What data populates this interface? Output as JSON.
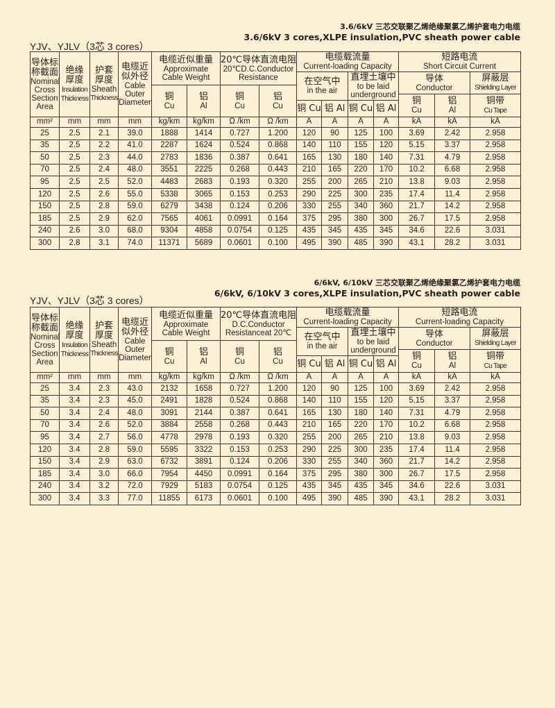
{
  "colors": {
    "background": "#fdf0d5",
    "rule": "#3a3633",
    "text": "#231f1c"
  },
  "table1": {
    "title_zh": "3.6/6kV 三芯交联聚乙烯绝缘聚氯乙烯护套电力电缆",
    "title_en": "3.6/6kV 3 cores,XLPE insulation,PVC sheath power cable",
    "label": "YJV、YJLV（3芯  3 cores）",
    "header": [
      {
        "key": "nominal-area",
        "rs": 5,
        "cs": 1,
        "row": 0,
        "lines": [
          "导体标",
          "称截面",
          "Nominal",
          "Cross",
          "Section",
          "Area"
        ]
      },
      {
        "key": "insulation-thickness",
        "rs": 5,
        "cs": 1,
        "row": 0,
        "lines": [
          "绝缘",
          "厚度",
          "Insulation",
          "Thickness"
        ]
      },
      {
        "key": "sheath-thickness",
        "rs": 5,
        "cs": 1,
        "row": 0,
        "lines": [
          "护套",
          "厚度",
          "Sheath",
          "Thickness"
        ]
      },
      {
        "key": "outer-diameter",
        "rs": 5,
        "cs": 1,
        "row": 0,
        "lines": [
          "电缆近",
          "似外径",
          "Cable",
          "Outer",
          "Diameter"
        ]
      },
      {
        "key": "cable-weight",
        "rs": 2,
        "cs": 2,
        "row": 0,
        "lines": [
          "电缆近似重量",
          "Approximate",
          "Cable Weight"
        ]
      },
      {
        "key": "dc-resistance",
        "rs": 2,
        "cs": 2,
        "row": 0,
        "lines": [
          "20℃导体直流电阻",
          "20℃D.C.Conductor",
          "Resistance"
        ]
      },
      {
        "key": "current-capacity",
        "rs": 1,
        "cs": 4,
        "row": 0,
        "lines": [
          "电缆载流量",
          "Current-loading Capacity"
        ]
      },
      {
        "key": "short-circuit",
        "rs": 1,
        "cs": 3,
        "row": 0,
        "lines": [
          "短路电流",
          "Short  Circuit Current"
        ]
      },
      {
        "key": "in-air",
        "rs": 3,
        "cs": 2,
        "row": 1,
        "lines": [
          "在空气中",
          "in the air"
        ]
      },
      {
        "key": "underground",
        "rs": 3,
        "cs": 2,
        "row": 1,
        "lines": [
          "直埋土壤中",
          "to be laid",
          "underground"
        ]
      },
      {
        "key": "conductor",
        "rs": 2,
        "cs": 2,
        "row": 1,
        "lines": [
          "导体",
          "Conductor"
        ]
      },
      {
        "key": "shielding-layer",
        "rs": 2,
        "cs": 1,
        "row": 1,
        "lines": [
          "屏蔽层",
          "Shielding Layer"
        ]
      },
      {
        "key": "weight-cu",
        "rs": 3,
        "cs": 1,
        "row": 2,
        "lines": [
          "铜",
          "Cu"
        ]
      },
      {
        "key": "weight-al",
        "rs": 3,
        "cs": 1,
        "row": 2,
        "lines": [
          "铝",
          "Al"
        ]
      },
      {
        "key": "resistance-cu",
        "rs": 3,
        "cs": 1,
        "row": 2,
        "lines": [
          "铜",
          "Cu"
        ]
      },
      {
        "key": "resistance-al",
        "rs": 3,
        "cs": 1,
        "row": 2,
        "lines": [
          "铝",
          "Cu"
        ]
      },
      {
        "key": "conductor-cu",
        "rs": 2,
        "cs": 1,
        "row": 3,
        "lines": [
          "铜",
          "Cu"
        ]
      },
      {
        "key": "conductor-al",
        "rs": 2,
        "cs": 1,
        "row": 3,
        "lines": [
          "铝",
          "Al"
        ]
      },
      {
        "key": "cu-tape",
        "rs": 2,
        "cs": 1,
        "row": 3,
        "lines": [
          "铜带",
          "Cu Tape"
        ]
      },
      {
        "key": "air-cu",
        "rs": 1,
        "cs": 1,
        "row": 4,
        "lines": [
          "铜 Cu"
        ]
      },
      {
        "key": "air-al",
        "rs": 1,
        "cs": 1,
        "row": 4,
        "lines": [
          "铝 Al"
        ]
      },
      {
        "key": "underground-cu",
        "rs": 1,
        "cs": 1,
        "row": 4,
        "lines": [
          "铜 Cu"
        ]
      },
      {
        "key": "underground-al",
        "rs": 1,
        "cs": 1,
        "row": 4,
        "lines": [
          "铝 Al"
        ]
      }
    ],
    "units": [
      "mm²",
      "mm",
      "mm",
      "mm",
      "kg/km",
      "kg/km",
      "Ω /km",
      "Ω /km",
      "A",
      "A",
      "A",
      "A",
      "kA",
      "kA",
      "kA"
    ],
    "rows": [
      [
        "25",
        "2.5",
        "2.1",
        "39.0",
        "1888",
        "1414",
        "0.727",
        "1.200",
        "120",
        "90",
        "125",
        "100",
        "3.69",
        "2.42",
        "2.958"
      ],
      [
        "35",
        "2.5",
        "2.2",
        "41.0",
        "2287",
        "1624",
        "0.524",
        "0.868",
        "140",
        "110",
        "155",
        "120",
        "5.15",
        "3.37",
        "2.958"
      ],
      [
        "50",
        "2.5",
        "2.3",
        "44.0",
        "2783",
        "1836",
        "0.387",
        "0.641",
        "165",
        "130",
        "180",
        "140",
        "7.31",
        "4.79",
        "2.958"
      ],
      [
        "70",
        "2.5",
        "2.4",
        "48.0",
        "3551",
        "2225",
        "0.268",
        "0.443",
        "210",
        "165",
        "220",
        "170",
        "10.2",
        "6.68",
        "2.958"
      ],
      [
        "95",
        "2.5",
        "2.5",
        "52.0",
        "4483",
        "2683",
        "0.193",
        "0.320",
        "255",
        "200",
        "265",
        "210",
        "13.8",
        "9.03",
        "2.958"
      ],
      [
        "120",
        "2.5",
        "2.6",
        "55.0",
        "5338",
        "3065",
        "0.153",
        "0.253",
        "290",
        "225",
        "300",
        "235",
        "17.4",
        "11.4",
        "2.958"
      ],
      [
        "150",
        "2.5",
        "2.8",
        "59.0",
        "6279",
        "3438",
        "0.124",
        "0.206",
        "330",
        "255",
        "340",
        "360",
        "21.7",
        "14.2",
        "2.958"
      ],
      [
        "185",
        "2.5",
        "2.9",
        "62.0",
        "7565",
        "4061",
        "0.0991",
        "0.164",
        "375",
        "295",
        "380",
        "300",
        "26.7",
        "17.5",
        "2.958"
      ],
      [
        "240",
        "2.6",
        "3.0",
        "68.0",
        "9304",
        "4858",
        "0.0754",
        "0.125",
        "435",
        "345",
        "435",
        "345",
        "34.6",
        "22.6",
        "3.031"
      ],
      [
        "300",
        "2.8",
        "3.1",
        "74.0",
        "11371",
        "5689",
        "0.0601",
        "0.100",
        "495",
        "390",
        "485",
        "390",
        "43.1",
        "28.2",
        "3.031"
      ]
    ]
  },
  "table2": {
    "title_zh": "6/6kV, 6/10kV 三芯交联聚乙烯绝缘聚氯乙烯护套电力电缆",
    "title_en": "6/6kV, 6/10kV 3 cores,XLPE insulation,PVC sheath power cable",
    "label": "YJV、YJLV（3芯  3 cores）",
    "header": [
      {
        "key": "nominal-area",
        "rs": 5,
        "cs": 1,
        "row": 0,
        "lines": [
          "导体标",
          "称截面",
          "Nominal",
          "Cross",
          "Section",
          "Area"
        ]
      },
      {
        "key": "insulation-thickness",
        "rs": 5,
        "cs": 1,
        "row": 0,
        "lines": [
          "绝缘",
          "厚度",
          "Insulation",
          "Thickness"
        ]
      },
      {
        "key": "sheath-thickness",
        "rs": 5,
        "cs": 1,
        "row": 0,
        "lines": [
          "护套",
          "厚度",
          "Sheath",
          "Thickness"
        ]
      },
      {
        "key": "outer-diameter",
        "rs": 5,
        "cs": 1,
        "row": 0,
        "lines": [
          "电缆近",
          "似外径",
          "Cable",
          "Outer",
          "Diameter"
        ]
      },
      {
        "key": "cable-weight",
        "rs": 2,
        "cs": 2,
        "row": 0,
        "lines": [
          "电缆近似重量",
          "Approximate",
          "Cable Weight"
        ]
      },
      {
        "key": "dc-resistance",
        "rs": 2,
        "cs": 2,
        "row": 0,
        "lines": [
          "20℃导体直流电阻",
          "D.C.Conductor",
          "Resistanceat 20℃"
        ]
      },
      {
        "key": "current-capacity",
        "rs": 1,
        "cs": 4,
        "row": 0,
        "lines": [
          "电缆载流量",
          "Current-loading Capacity"
        ]
      },
      {
        "key": "short-circuit",
        "rs": 1,
        "cs": 3,
        "row": 0,
        "lines": [
          "短路电流",
          "Current-loading Capacity"
        ]
      },
      {
        "key": "in-air",
        "rs": 3,
        "cs": 2,
        "row": 1,
        "lines": [
          "在空气中",
          "in the air"
        ]
      },
      {
        "key": "underground",
        "rs": 3,
        "cs": 2,
        "row": 1,
        "lines": [
          "直埋土壤中",
          "to be laid",
          "underground"
        ]
      },
      {
        "key": "conductor",
        "rs": 2,
        "cs": 2,
        "row": 1,
        "lines": [
          "导体",
          "Conductor"
        ]
      },
      {
        "key": "shielding-layer",
        "rs": 2,
        "cs": 1,
        "row": 1,
        "lines": [
          "屏蔽层",
          "Shielding Layer"
        ]
      },
      {
        "key": "weight-cu",
        "rs": 3,
        "cs": 1,
        "row": 2,
        "lines": [
          "铜",
          "Cu"
        ]
      },
      {
        "key": "weight-al",
        "rs": 3,
        "cs": 1,
        "row": 2,
        "lines": [
          "铝",
          "Al"
        ]
      },
      {
        "key": "resistance-cu",
        "rs": 3,
        "cs": 1,
        "row": 2,
        "lines": [
          "铜",
          "Cu"
        ]
      },
      {
        "key": "resistance-al",
        "rs": 3,
        "cs": 1,
        "row": 2,
        "lines": [
          "铝",
          "Cu"
        ]
      },
      {
        "key": "conductor-cu",
        "rs": 2,
        "cs": 1,
        "row": 3,
        "lines": [
          "铜",
          "Cu"
        ]
      },
      {
        "key": "conductor-al",
        "rs": 2,
        "cs": 1,
        "row": 3,
        "lines": [
          "铝",
          "Al"
        ]
      },
      {
        "key": "cu-tape",
        "rs": 2,
        "cs": 1,
        "row": 3,
        "lines": [
          "铜带",
          "Cu Tape"
        ]
      },
      {
        "key": "air-cu",
        "rs": 1,
        "cs": 1,
        "row": 4,
        "lines": [
          "铜 Cu"
        ]
      },
      {
        "key": "air-al",
        "rs": 1,
        "cs": 1,
        "row": 4,
        "lines": [
          "铝 Al"
        ]
      },
      {
        "key": "underground-cu",
        "rs": 1,
        "cs": 1,
        "row": 4,
        "lines": [
          "铜 Cu"
        ]
      },
      {
        "key": "underground-al",
        "rs": 1,
        "cs": 1,
        "row": 4,
        "lines": [
          "铝 Al"
        ]
      }
    ],
    "units": [
      "mm²",
      "mm",
      "mm",
      "mm",
      "kg/km",
      "kg/km",
      "Ω /km",
      "Ω /km",
      "A",
      "A",
      "A",
      "A",
      "kA",
      "kA",
      "kA"
    ],
    "rows": [
      [
        "25",
        "3.4",
        "2.3",
        "43.0",
        "2132",
        "1658",
        "0.727",
        "1.200",
        "120",
        "90",
        "125",
        "100",
        "3.69",
        "2.42",
        "2.958"
      ],
      [
        "35",
        "3.4",
        "2.3",
        "45.0",
        "2491",
        "1828",
        "0.524",
        "0.868",
        "140",
        "110",
        "155",
        "120",
        "5.15",
        "3.37",
        "2.958"
      ],
      [
        "50",
        "3.4",
        "2.4",
        "48.0",
        "3091",
        "2144",
        "0.387",
        "0.641",
        "165",
        "130",
        "180",
        "140",
        "7.31",
        "4.79",
        "2.958"
      ],
      [
        "70",
        "3.4",
        "2.6",
        "52.0",
        "3884",
        "2558",
        "0.268",
        "0.443",
        "210",
        "165",
        "220",
        "170",
        "10.2",
        "6.68",
        "2.958"
      ],
      [
        "95",
        "3.4",
        "2.7",
        "56.0",
        "4778",
        "2978",
        "0.193",
        "0.320",
        "255",
        "200",
        "265",
        "210",
        "13.8",
        "9.03",
        "2.958"
      ],
      [
        "120",
        "3.4",
        "2.8",
        "59.0",
        "5595",
        "3322",
        "0.153",
        "0.253",
        "290",
        "225",
        "300",
        "235",
        "17.4",
        "11.4",
        "2.958"
      ],
      [
        "150",
        "3.4",
        "2.9",
        "63.0",
        "6732",
        "3891",
        "0.124",
        "0.206",
        "330",
        "255",
        "340",
        "360",
        "21.7",
        "14.2",
        "2.958"
      ],
      [
        "185",
        "3.4",
        "3.0",
        "66.0",
        "7954",
        "4450",
        "0.0991",
        "0.164",
        "375",
        "295",
        "380",
        "300",
        "26.7",
        "17.5",
        "2.958"
      ],
      [
        "240",
        "3.4",
        "3.2",
        "72.0",
        "7929",
        "5183",
        "0.0754",
        "0.125",
        "435",
        "345",
        "435",
        "345",
        "34.6",
        "22.6",
        "3.031"
      ],
      [
        "300",
        "3.4",
        "3.3",
        "77.0",
        "11855",
        "6173",
        "0.0601",
        "0.100",
        "495",
        "390",
        "485",
        "390",
        "43.1",
        "28.2",
        "3.031"
      ]
    ]
  }
}
